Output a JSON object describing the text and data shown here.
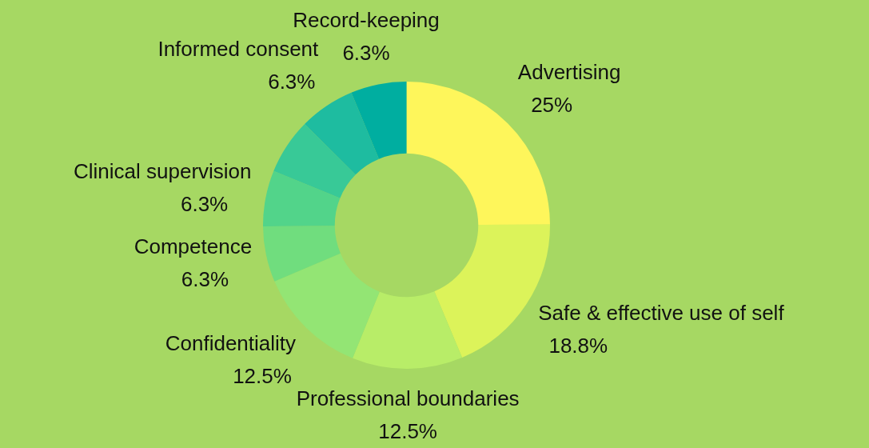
{
  "chart_data": {
    "type": "donut",
    "categories": [
      "Advertising",
      "Safe & effective use of self",
      "Professional boundaries",
      "Confidentiality",
      "Competence",
      "Clinical supervision",
      null,
      "Informed consent",
      "Record-keeping"
    ],
    "values": [
      25,
      18.8,
      12.5,
      12.5,
      6.3,
      6.3,
      6.3,
      6.3,
      6.3
    ],
    "value_labels": [
      "25%",
      "18.8%",
      "12.5%",
      "12.5%",
      "6.3%",
      "6.3%",
      null,
      "6.3%",
      "6.3%"
    ],
    "colors": [
      "#fef65b",
      "#dcf35a",
      "#b8ed68",
      "#93e574",
      "#70dd7e",
      "#52d48a",
      "#38c997",
      "#1ebca0",
      "#00aea0"
    ],
    "legend": false
  }
}
